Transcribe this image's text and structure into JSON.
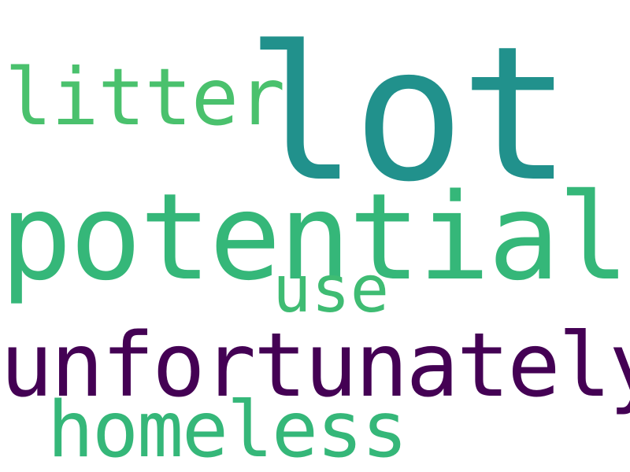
{
  "words": [
    {
      "id": "lot",
      "text": "lot",
      "color": "#21918c"
    },
    {
      "id": "litter",
      "text": "litter",
      "color": "#4ac16d"
    },
    {
      "id": "potential",
      "text": "potential",
      "color": "#35b779"
    },
    {
      "id": "use",
      "text": "use",
      "color": "#3fbc73"
    },
    {
      "id": "unfortunately",
      "text": "unfortunately",
      "color": "#440154"
    },
    {
      "id": "homeless",
      "text": "homeless",
      "color": "#35b779"
    }
  ]
}
